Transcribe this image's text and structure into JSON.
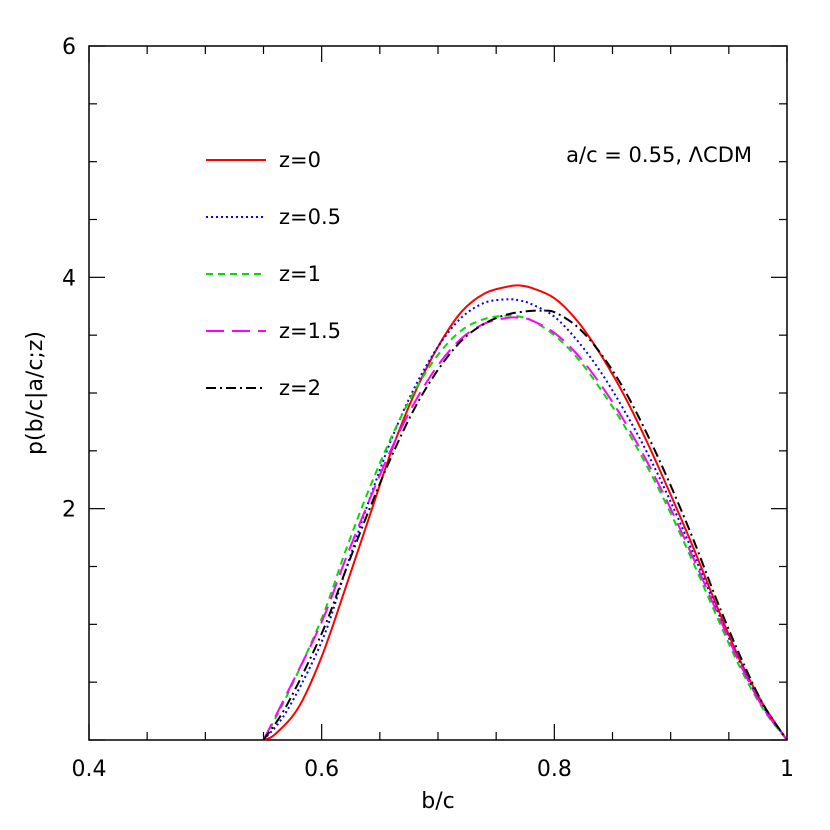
{
  "chart_data": {
    "type": "line",
    "xlabel": "b/c",
    "ylabel": "p(b/c|a/c;z)",
    "xlim": [
      0.4,
      1.0
    ],
    "ylim": [
      0,
      6
    ],
    "xticks": [
      "0.4",
      "0.6",
      "0.8",
      "1"
    ],
    "yticks": [
      "2",
      "4",
      "6"
    ],
    "annotation": "a/c = 0.55, ΛCDM",
    "legend_position": "upper-left",
    "grid": false,
    "series": [
      {
        "name": "z=0",
        "color": "#ff0000",
        "dash": "solid",
        "x": [
          0.55,
          0.56,
          0.58,
          0.6,
          0.62,
          0.64,
          0.66,
          0.68,
          0.7,
          0.72,
          0.74,
          0.76,
          0.77,
          0.78,
          0.8,
          0.82,
          0.84,
          0.86,
          0.88,
          0.9,
          0.92,
          0.94,
          0.96,
          0.98,
          1.0
        ],
        "y": [
          0.0,
          0.05,
          0.28,
          0.72,
          1.3,
          1.9,
          2.5,
          3.0,
          3.4,
          3.7,
          3.86,
          3.92,
          3.93,
          3.91,
          3.82,
          3.62,
          3.33,
          2.98,
          2.57,
          2.12,
          1.65,
          1.15,
          0.68,
          0.3,
          0.0
        ]
      },
      {
        "name": "z=0.5",
        "color": "#0000ff",
        "dash": "dotted",
        "x": [
          0.55,
          0.57,
          0.6,
          0.62,
          0.64,
          0.66,
          0.68,
          0.7,
          0.72,
          0.74,
          0.76,
          0.77,
          0.78,
          0.8,
          0.82,
          0.84,
          0.86,
          0.88,
          0.9,
          0.92,
          0.94,
          0.96,
          0.98,
          1.0
        ],
        "y": [
          0.0,
          0.25,
          0.85,
          1.45,
          2.05,
          2.6,
          3.05,
          3.4,
          3.65,
          3.78,
          3.81,
          3.8,
          3.77,
          3.66,
          3.45,
          3.18,
          2.85,
          2.48,
          2.06,
          1.6,
          1.12,
          0.66,
          0.28,
          0.0
        ]
      },
      {
        "name": "z=1",
        "color": "#00dd00",
        "dash": "dashed",
        "x": [
          0.55,
          0.57,
          0.6,
          0.62,
          0.64,
          0.66,
          0.68,
          0.7,
          0.72,
          0.74,
          0.76,
          0.77,
          0.78,
          0.8,
          0.82,
          0.84,
          0.86,
          0.88,
          0.9,
          0.92,
          0.94,
          0.96,
          0.98,
          1.0
        ],
        "y": [
          0.0,
          0.38,
          1.05,
          1.62,
          2.15,
          2.62,
          3.02,
          3.33,
          3.54,
          3.64,
          3.67,
          3.66,
          3.63,
          3.5,
          3.3,
          3.03,
          2.72,
          2.36,
          1.96,
          1.52,
          1.06,
          0.62,
          0.26,
          0.0
        ]
      },
      {
        "name": "z=1.5",
        "color": "#ff00ff",
        "dash": "longdash",
        "x": [
          0.55,
          0.57,
          0.6,
          0.62,
          0.64,
          0.66,
          0.68,
          0.7,
          0.72,
          0.74,
          0.76,
          0.77,
          0.78,
          0.8,
          0.82,
          0.84,
          0.86,
          0.88,
          0.9,
          0.92,
          0.94,
          0.96,
          0.98,
          1.0
        ],
        "y": [
          0.0,
          0.4,
          1.02,
          1.55,
          2.05,
          2.52,
          2.92,
          3.24,
          3.47,
          3.6,
          3.65,
          3.65,
          3.63,
          3.52,
          3.33,
          3.07,
          2.76,
          2.4,
          2.0,
          1.56,
          1.1,
          0.65,
          0.27,
          0.0
        ]
      },
      {
        "name": "z=2",
        "color": "#000000",
        "dash": "dashdot",
        "x": [
          0.55,
          0.57,
          0.6,
          0.62,
          0.64,
          0.66,
          0.68,
          0.7,
          0.72,
          0.74,
          0.76,
          0.78,
          0.79,
          0.8,
          0.82,
          0.84,
          0.86,
          0.88,
          0.9,
          0.92,
          0.94,
          0.96,
          0.98,
          1.0
        ],
        "y": [
          0.0,
          0.3,
          0.92,
          1.45,
          1.97,
          2.45,
          2.87,
          3.2,
          3.45,
          3.6,
          3.68,
          3.71,
          3.71,
          3.7,
          3.57,
          3.34,
          3.03,
          2.64,
          2.2,
          1.72,
          1.2,
          0.72,
          0.3,
          0.0
        ]
      }
    ]
  }
}
